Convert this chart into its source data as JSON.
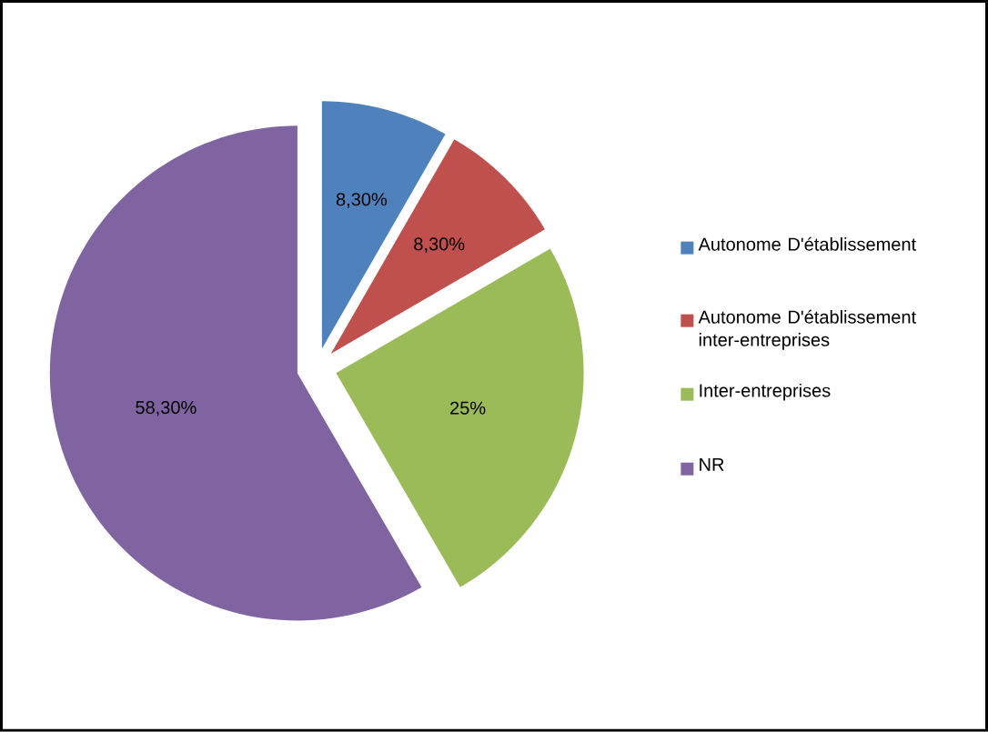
{
  "chart_data": {
    "type": "pie",
    "categories": [
      "Autonome D'établissement",
      "Autonome D'établissement inter-entreprises",
      "Inter-entreprises",
      "NR"
    ],
    "values": [
      8.3,
      8.3,
      25,
      58.3
    ],
    "colors": [
      "#4f81bd",
      "#c0504d",
      "#9bbb59",
      "#8064a2"
    ],
    "value_labels": [
      "8,30%",
      "8,30%",
      "25%",
      "58,30%"
    ],
    "legend": "right"
  }
}
